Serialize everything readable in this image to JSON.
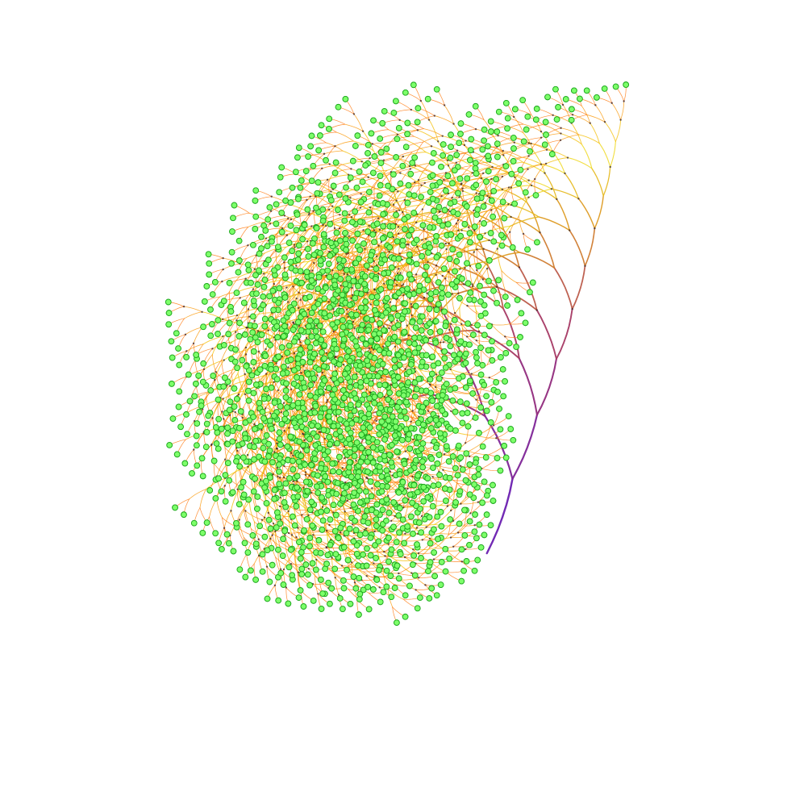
{
  "scene": {
    "subject": "branching-tree-fractal",
    "background_color": "#ffffff",
    "colors": {
      "trunk": "#6a1fb0",
      "lower_branches": "#a0306a",
      "mid_branches": "#d98a20",
      "upper_branches": "#f0e020",
      "dense_canopy": "#ff7a10",
      "leaf_fill": "#7dff6a",
      "leaf_stroke": "#1fa81f",
      "node_dots": "#2a1a2a"
    },
    "tree": {
      "depth": 11,
      "branching_factor": 2,
      "curl": "counter-clockwise"
    }
  }
}
